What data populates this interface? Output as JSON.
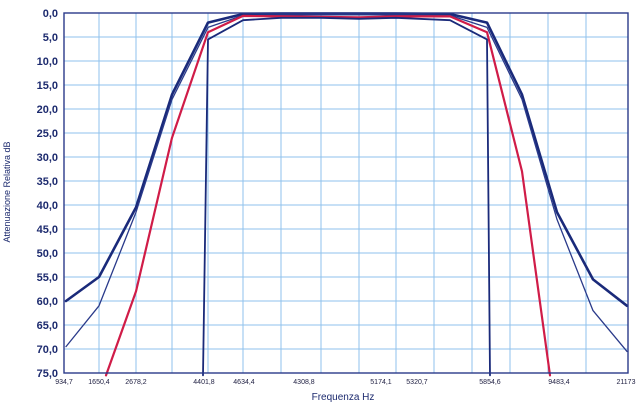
{
  "chart_data": {
    "type": "line",
    "title": "",
    "xlabel": "Frequenza Hz",
    "ylabel": "Attenuazione Relativa dB",
    "y_inverted": true,
    "ylim": [
      0,
      75
    ],
    "y_ticks": [
      "0,0",
      "5,0",
      "10,0",
      "15,0",
      "20,0",
      "25,0",
      "30,0",
      "35,0",
      "40,0",
      "45,0",
      "50,0",
      "55,0",
      "60,0",
      "65,0",
      "70,0",
      "75,0"
    ],
    "x_ticks": [
      "934,7",
      "1650,4",
      "2678,2",
      "4401,8",
      "4634,4",
      "4308,8",
      "5174,1",
      "5320,7",
      "5854,6",
      "9483,4",
      "21173"
    ],
    "grid": true,
    "series": [
      {
        "color": "#1a2a7a",
        "width": 2.6,
        "x": [
          66,
          99,
          136,
          172,
          208,
          243,
          281,
          321,
          359,
          396,
          450,
          487,
          522,
          557,
          593,
          627
        ],
        "values": [
          60,
          55,
          40.5,
          17,
          2,
          0.2,
          0.1,
          0.1,
          0.1,
          0.1,
          0.2,
          2,
          17,
          41.5,
          55.5,
          61
        ]
      },
      {
        "color": "#2a3a8a",
        "width": 1.3,
        "x": [
          66,
          99,
          136,
          172,
          208,
          243,
          281,
          321,
          359,
          396,
          450,
          487,
          522,
          557,
          593,
          627
        ],
        "values": [
          69.5,
          61,
          41.5,
          18,
          3,
          0.5,
          0.4,
          0.4,
          0.4,
          0.4,
          0.5,
          3,
          18,
          43,
          62,
          70.5
        ]
      },
      {
        "color": "#d01c48",
        "width": 2.2,
        "x": [
          106,
          136,
          172,
          208,
          243,
          281,
          321,
          359,
          396,
          450,
          487,
          522,
          550
        ],
        "values": [
          75.5,
          58,
          26,
          4,
          0.6,
          0.7,
          0.8,
          0.9,
          0.7,
          0.7,
          4,
          33,
          75.5
        ]
      },
      {
        "color": "#1a2a7a",
        "width": 1.8,
        "x": [
          203,
          208,
          243,
          281,
          321,
          359,
          396,
          450,
          487,
          490
        ],
        "values": [
          75.5,
          5.5,
          1.5,
          1,
          1,
          1.2,
          1,
          1.5,
          5.5,
          75.5
        ]
      }
    ]
  }
}
